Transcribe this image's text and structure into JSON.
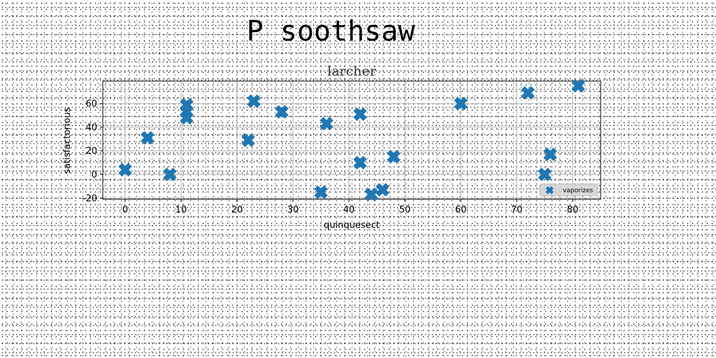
{
  "chart_data": {
    "type": "scatter",
    "suptitle": "P soothsaw",
    "title": "larcher",
    "xlabel": "quinquesect",
    "ylabel": "satisfactorious",
    "xlim": [
      -4,
      85
    ],
    "ylim": [
      -21,
      79
    ],
    "xticks": [
      0,
      10,
      20,
      30,
      40,
      50,
      60,
      70,
      80
    ],
    "yticks": [
      -20,
      0,
      20,
      40,
      60
    ],
    "grid": true,
    "legend_position": "bottom-right",
    "series": [
      {
        "name": "vaporizes",
        "color": "#1f77b4",
        "marker": "X",
        "x": [
          0,
          4,
          8,
          11,
          11,
          11,
          22,
          23,
          28,
          35,
          36,
          42,
          42,
          44,
          46,
          48,
          60,
          72,
          75,
          76,
          81
        ],
        "y": [
          4,
          31,
          0,
          59,
          53,
          48,
          29,
          62,
          53,
          -15,
          43,
          51,
          10,
          -17,
          -13,
          15,
          60,
          69,
          0,
          17,
          75
        ]
      }
    ]
  }
}
